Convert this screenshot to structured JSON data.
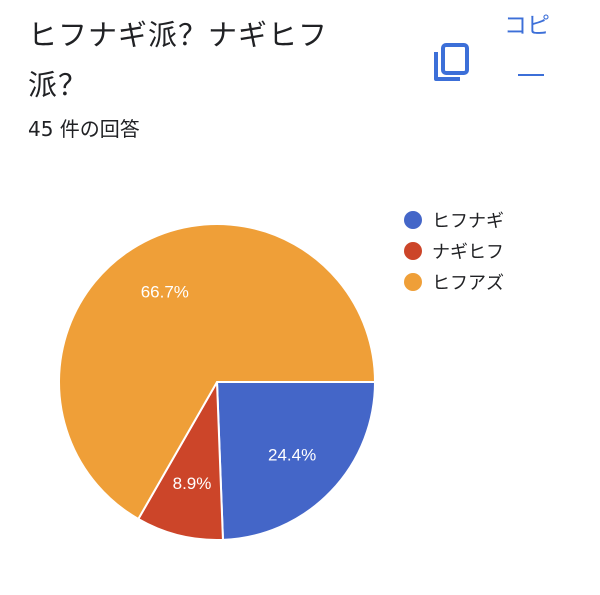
{
  "header": {
    "title": "ヒフナギ派？ナギヒフ派？",
    "response_count": "45 件の回答",
    "copy_label": "コピ",
    "copy_icon": "copy-icon"
  },
  "chart_data": {
    "type": "pie",
    "title": "ヒフナギ派？ナギヒフ派？",
    "total_responses": 45,
    "legend_position": "right",
    "slices": [
      {
        "label": "ヒフナギ",
        "value": 24.4,
        "label_text": "24.4%",
        "color": "#4466c8"
      },
      {
        "label": "ナギヒフ",
        "value": 8.9,
        "label_text": "8.9%",
        "color": "#cc4529"
      },
      {
        "label": "ヒフアズ",
        "value": 66.7,
        "label_text": "66.7%",
        "color": "#ef9f38"
      }
    ]
  }
}
